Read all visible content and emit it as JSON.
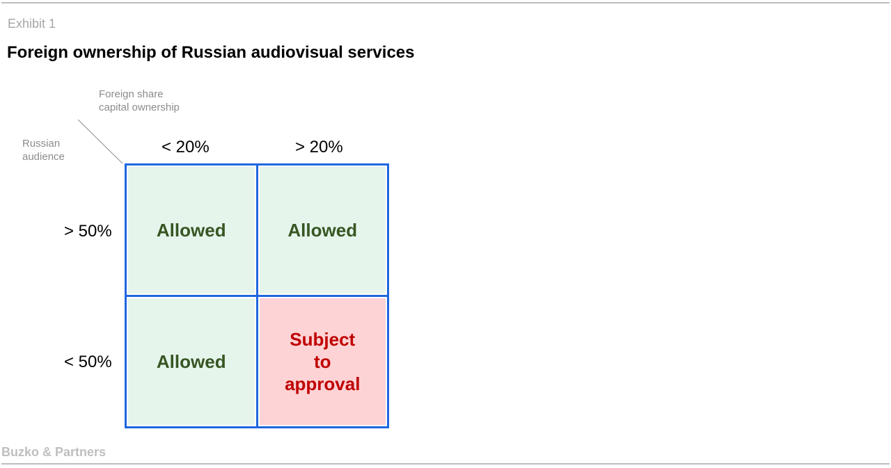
{
  "exhibit_label": "Exhibit 1",
  "title": "Foreign ownership of Russian audiovisual services",
  "column_axis_label": "Foreign share capital ownership",
  "row_axis_label": "Russian audience",
  "column_headers": [
    "< 20%",
    "> 20%"
  ],
  "row_headers": [
    "> 50%",
    "< 50%"
  ],
  "cells": [
    [
      "Allowed",
      "Allowed"
    ],
    [
      "Allowed",
      "Subject to approval"
    ]
  ],
  "colors": {
    "border": "#1f66e0",
    "allowed_fill": "#e6f5ec",
    "allowed_text": "#375623",
    "approval_fill": "#fdd3d5",
    "approval_text": "#c00000"
  },
  "footer": "Buzko & Partners"
}
